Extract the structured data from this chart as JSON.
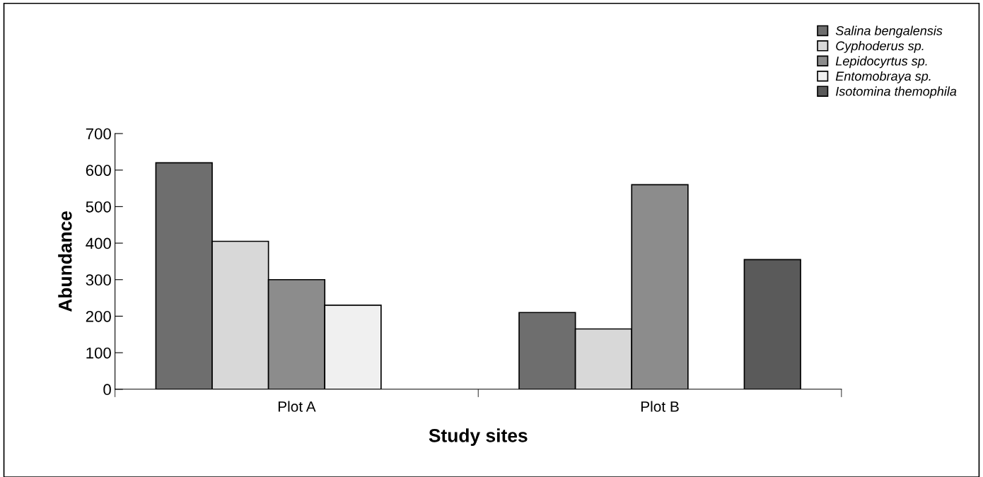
{
  "chart_data": {
    "type": "bar",
    "xlabel": "Study sites",
    "ylabel": "Abundance",
    "categories": [
      "Plot A",
      "Plot B"
    ],
    "series": [
      {
        "name": "Salina bengalensis",
        "color": "#6e6e6e",
        "values": [
          620,
          210
        ]
      },
      {
        "name": "Cyphoderus sp.",
        "color": "#d8d8d8",
        "values": [
          405,
          165
        ]
      },
      {
        "name": "Lepidocyrtus sp.",
        "color": "#8c8c8c",
        "values": [
          300,
          560
        ]
      },
      {
        "name": "Entomobraya sp.",
        "color": "#f0f0f0",
        "values": [
          230,
          null
        ]
      },
      {
        "name": "Isotomina themophila",
        "color": "#5a5a5a",
        "values": [
          null,
          355
        ]
      }
    ],
    "ylim": [
      0,
      700
    ],
    "yticks": [
      0,
      100,
      200,
      300,
      400,
      500,
      600,
      700
    ],
    "grid": false,
    "legend": "top right"
  }
}
